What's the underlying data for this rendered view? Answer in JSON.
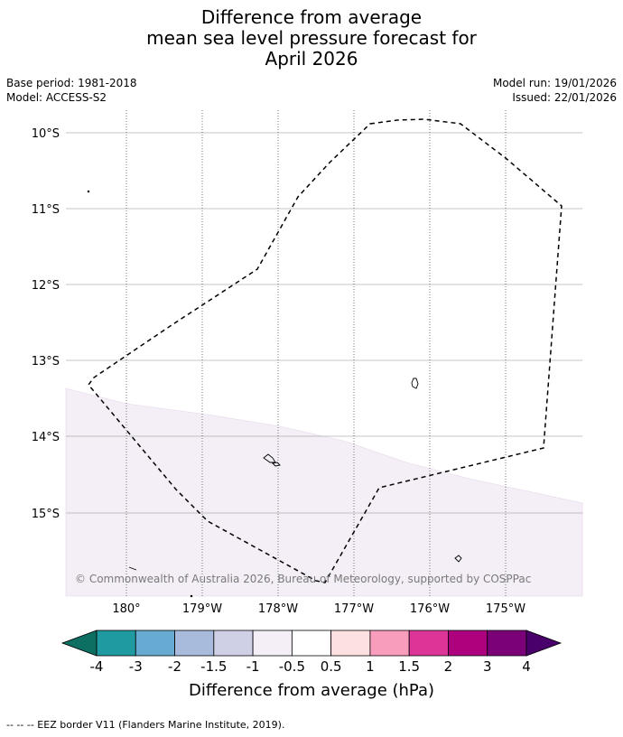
{
  "title": {
    "line1": "Difference from average",
    "line2": "mean sea level pressure forecast for",
    "line3": "April 2026"
  },
  "meta": {
    "base_period": "Base period: 1981-2018",
    "model": "Model: ACCESS-S2",
    "model_run": "Model run: 19/01/2026",
    "issued": "Issued: 22/01/2026"
  },
  "map": {
    "lat_labels": [
      "10°S",
      "11°S",
      "12°S",
      "13°S",
      "14°S",
      "15°S"
    ],
    "lon_labels": [
      "180°",
      "179°W",
      "178°W",
      "177°W",
      "176°W",
      "175°W"
    ],
    "credit": "© Commonwealth of Australia 2026, Bureau of Meteorology, supported by COSPPac",
    "shaded_category": "-1 to -0.5",
    "shaded_color": "#f4eef6"
  },
  "colorbar": {
    "title": "Difference from average (hPa)",
    "tick_labels": [
      "-4",
      "-3",
      "-2",
      "-1.5",
      "-1",
      "-0.5",
      "0.5",
      "1",
      "1.5",
      "2",
      "3",
      "4"
    ],
    "colors": [
      "#0d6e62",
      "#1f9aa0",
      "#67abd3",
      "#a8bbdd",
      "#cfd0e6",
      "#f4eef6",
      "#ffffff",
      "#fde0e1",
      "#f89dbb",
      "#dd3497",
      "#ae017e",
      "#7a0177",
      "#49006a"
    ]
  },
  "footer": {
    "legend_text": "--  --  -- EEZ border V11 (Flanders Marine Institute, 2019)."
  }
}
